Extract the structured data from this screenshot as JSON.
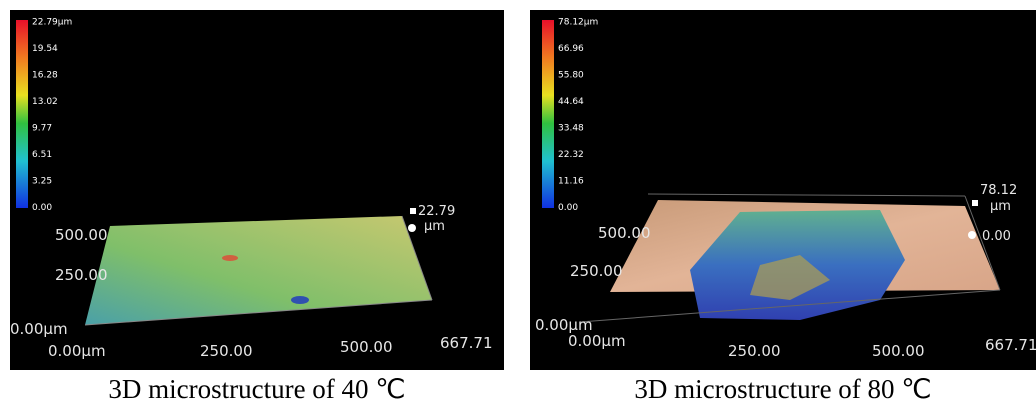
{
  "panels": [
    {
      "colorbar_labels": [
        "22.79µm",
        "19.54",
        "16.28",
        "13.02",
        "9.77",
        "6.51",
        "3.25",
        "0.00"
      ],
      "z_max": "22.79",
      "z_unit": "µm",
      "y_labels": [
        "500.00",
        "250.00",
        "0.00µm"
      ],
      "x_labels": [
        "0.00µm",
        "250.00",
        "500.00",
        "667.71"
      ],
      "caption": "3D microstructure of 40 ℃"
    },
    {
      "colorbar_labels": [
        "78.12µm",
        "66.96",
        "55.80",
        "44.64",
        "33.48",
        "22.32",
        "11.16",
        "0.00"
      ],
      "z_max": "78.12",
      "z_unit": "µm",
      "z_min": "0.00",
      "y_labels": [
        "500.00",
        "250.00",
        "0.00µm"
      ],
      "x_labels": [
        "0.00µm",
        "250.00",
        "500.00",
        "667.71"
      ],
      "caption": "3D microstructure of 80 ℃"
    }
  ]
}
